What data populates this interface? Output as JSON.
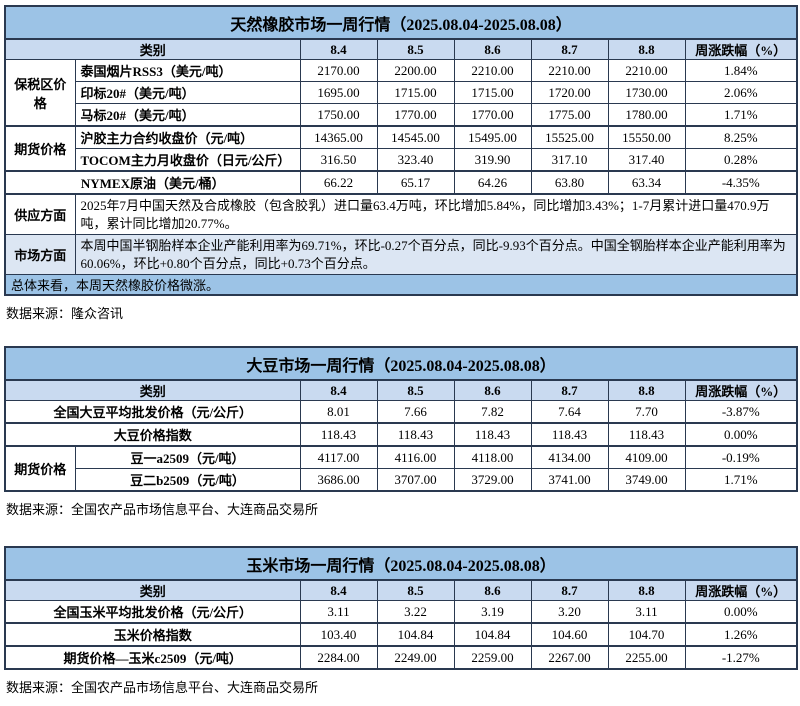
{
  "colors": {
    "title_bg": "#9cc3e6",
    "header_bg": "#c9daf0",
    "market_row_bg": "#dce6f3",
    "summary_bg": "#9cc3e6",
    "border": "#2a3950"
  },
  "rubber": {
    "title": "天然橡胶市场一周行情（2025.08.04-2025.08.08）",
    "header": {
      "category": "类别",
      "dates": [
        "8.4",
        "8.5",
        "8.6",
        "8.7",
        "8.8"
      ],
      "change": "周涨跌幅（%）"
    },
    "groups": {
      "bonded": "保税区价格",
      "futures": "期货价格"
    },
    "rows": [
      {
        "label": "泰国烟片RSS3（美元/吨）",
        "values": [
          "2170.00",
          "2200.00",
          "2210.00",
          "2210.00",
          "2210.00"
        ],
        "change": "1.84%"
      },
      {
        "label": "印标20#（美元/吨）",
        "values": [
          "1695.00",
          "1715.00",
          "1715.00",
          "1720.00",
          "1730.00"
        ],
        "change": "2.06%"
      },
      {
        "label": "马标20#（美元/吨）",
        "values": [
          "1750.00",
          "1770.00",
          "1770.00",
          "1775.00",
          "1780.00"
        ],
        "change": "1.71%"
      },
      {
        "label": "沪胶主力合约收盘价（元/吨）",
        "values": [
          "14365.00",
          "14545.00",
          "15495.00",
          "15525.00",
          "15550.00"
        ],
        "change": "8.25%"
      },
      {
        "label": "TOCOM主力月收盘价（日元/公斤）",
        "values": [
          "316.50",
          "323.40",
          "319.90",
          "317.10",
          "317.40"
        ],
        "change": "0.28%"
      },
      {
        "label": "NYMEX原油（美元/桶）",
        "values": [
          "66.22",
          "65.17",
          "64.26",
          "63.80",
          "63.34"
        ],
        "change": "-4.35%"
      }
    ],
    "supply": {
      "label": "供应方面",
      "text": "2025年7月中国天然及合成橡胶（包含胶乳）进口量63.4万吨，环比增加5.84%，同比增加3.43%；1-7月累计进口量470.9万吨，累计同比增加20.77%。"
    },
    "market": {
      "label": "市场方面",
      "text": "本周中国半钢胎样本企业产能利用率为69.71%，环比-0.27个百分点，同比-9.93个百分点。中国全钢胎样本企业产能利用率为60.06%，环比+0.80个百分点，同比+0.73个百分点。"
    },
    "summary": "总体来看，本周天然橡胶价格微涨。",
    "source": "数据来源：隆众咨讯"
  },
  "soybean": {
    "title": "大豆市场一周行情（2025.08.04-2025.08.08）",
    "header": {
      "category": "类别",
      "dates": [
        "8.4",
        "8.5",
        "8.6",
        "8.7",
        "8.8"
      ],
      "change": "周涨跌幅（%）"
    },
    "futures_group": "期货价格",
    "rows": [
      {
        "label": "全国大豆平均批发价格（元/公斤）",
        "values": [
          "8.01",
          "7.66",
          "7.82",
          "7.64",
          "7.70"
        ],
        "change": "-3.87%"
      },
      {
        "label": "大豆价格指数",
        "values": [
          "118.43",
          "118.43",
          "118.43",
          "118.43",
          "118.43"
        ],
        "change": "0.00%"
      },
      {
        "label": "豆一a2509（元/吨）",
        "values": [
          "4117.00",
          "4116.00",
          "4118.00",
          "4134.00",
          "4109.00"
        ],
        "change": "-0.19%"
      },
      {
        "label": "豆二b2509（元/吨）",
        "values": [
          "3686.00",
          "3707.00",
          "3729.00",
          "3741.00",
          "3749.00"
        ],
        "change": "1.71%"
      }
    ],
    "source": "数据来源：全国农产品市场信息平台、大连商品交易所"
  },
  "corn": {
    "title": "玉米市场一周行情（2025.08.04-2025.08.08）",
    "header": {
      "category": "类别",
      "dates": [
        "8.4",
        "8.5",
        "8.6",
        "8.7",
        "8.8"
      ],
      "change": "周涨跌幅（%）"
    },
    "rows": [
      {
        "label": "全国玉米平均批发价格（元/公斤）",
        "values": [
          "3.11",
          "3.22",
          "3.19",
          "3.20",
          "3.11"
        ],
        "change": "0.00%"
      },
      {
        "label": "玉米价格指数",
        "values": [
          "103.40",
          "104.84",
          "104.84",
          "104.60",
          "104.70"
        ],
        "change": "1.26%"
      },
      {
        "label": "期货价格—玉米c2509（元/吨）",
        "values": [
          "2284.00",
          "2249.00",
          "2259.00",
          "2267.00",
          "2255.00"
        ],
        "change": "-1.27%"
      }
    ],
    "source": "数据来源：全国农产品市场信息平台、大连商品交易所"
  }
}
